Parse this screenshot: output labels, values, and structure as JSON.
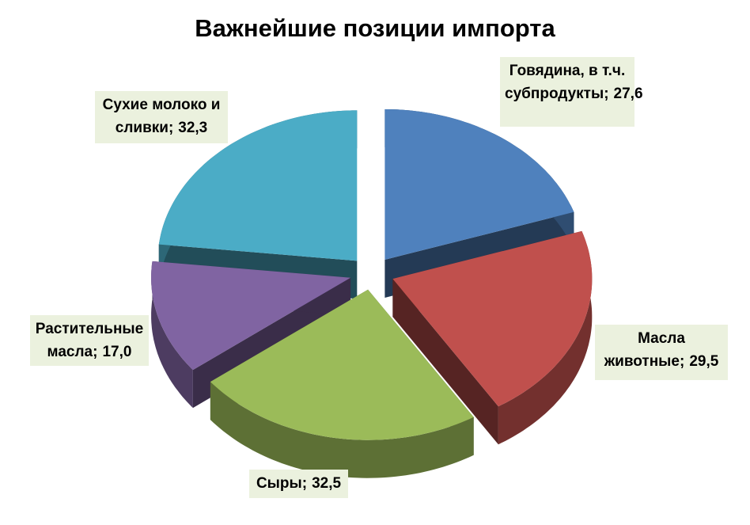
{
  "chart_data": {
    "type": "pie3d",
    "title": "Важнейшие позиции импорта",
    "categories": [
      "Говядина, в т.ч. субпродукты",
      "Масла животные",
      "Сыры",
      "Растительные масла",
      "Сухие молоко и сливки"
    ],
    "values": [
      27.6,
      29.5,
      32.5,
      17.0,
      32.3
    ],
    "value_labels": [
      "27,6",
      "29,5",
      "32,5",
      "17,0",
      "32,3"
    ],
    "label_separator": ";",
    "colors": [
      "#4f81bd",
      "#c0504d",
      "#9bbb59",
      "#8064a2",
      "#4bacc6"
    ]
  }
}
